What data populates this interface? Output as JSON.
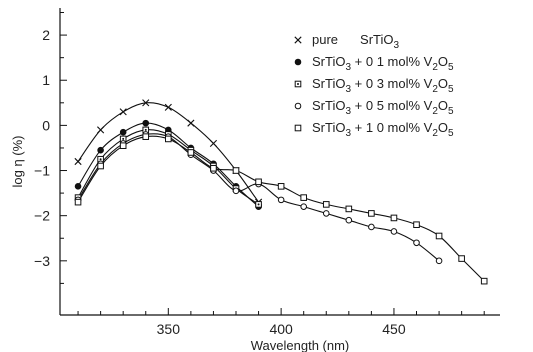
{
  "chart_data": {
    "type": "line",
    "title": "",
    "xlabel": "Wavelength (nm)",
    "ylabel": "log η (%)",
    "xlim": [
      302,
      497
    ],
    "ylim": [
      -4.2,
      2.6
    ],
    "xticks": [
      350,
      400,
      450
    ],
    "yticks": [
      2,
      1,
      0,
      -1,
      -2,
      -3
    ],
    "grid": false,
    "legend_position": "top-right",
    "series": [
      {
        "name": "pure SrTiO3",
        "marker": "x",
        "x": [
          310,
          320,
          330,
          340,
          350,
          360,
          370,
          380,
          390
        ],
        "y": [
          -0.8,
          -0.1,
          0.3,
          0.5,
          0.4,
          0.05,
          -0.4,
          -1.0,
          -1.7
        ]
      },
      {
        "name": "SrTiO3 + 0.1 mol% V2O5",
        "marker": "filled-circle",
        "x": [
          310,
          320,
          330,
          340,
          350,
          360,
          370,
          380,
          390
        ],
        "y": [
          -1.35,
          -0.55,
          -0.15,
          0.05,
          -0.1,
          -0.5,
          -0.85,
          -1.35,
          -1.8
        ]
      },
      {
        "name": "SrTiO3 + 0.3 mol% V2O5",
        "marker": "square-dot",
        "x": [
          310,
          320,
          330,
          340,
          350,
          360,
          370,
          380,
          390
        ],
        "y": [
          -1.6,
          -0.75,
          -0.3,
          -0.1,
          -0.2,
          -0.55,
          -0.9,
          -1.4,
          -1.75
        ]
      },
      {
        "name": "SrTiO3 + 0.5 mol% V2O5",
        "marker": "circle",
        "x": [
          310,
          320,
          330,
          340,
          350,
          360,
          370,
          380,
          390,
          400,
          410,
          420,
          430,
          440,
          450,
          460,
          470
        ],
        "y": [
          -1.65,
          -0.85,
          -0.4,
          -0.2,
          -0.25,
          -0.65,
          -1.0,
          -1.45,
          -1.3,
          -1.65,
          -1.8,
          -1.95,
          -2.1,
          -2.25,
          -2.35,
          -2.6,
          -3.0
        ]
      },
      {
        "name": "SrTiO3 + 1.0 mol% V2O5",
        "marker": "square",
        "x": [
          310,
          320,
          330,
          340,
          350,
          360,
          370,
          380,
          390,
          400,
          410,
          420,
          430,
          440,
          450,
          460,
          470,
          480,
          490
        ],
        "y": [
          -1.7,
          -0.9,
          -0.45,
          -0.25,
          -0.3,
          -0.6,
          -0.95,
          -1.0,
          -1.25,
          -1.35,
          -1.6,
          -1.75,
          -1.85,
          -1.95,
          -2.05,
          -2.2,
          -2.45,
          -2.95,
          -3.45
        ]
      }
    ]
  },
  "legend_rows": [
    {
      "marker": "x",
      "parts": [
        "pure",
        "SrTiO",
        "3"
      ]
    },
    {
      "marker": "filled-circle",
      "parts": [
        "SrTiO",
        "3",
        " + 0 1 mol% V",
        "2",
        "O",
        "5"
      ]
    },
    {
      "marker": "square-dot",
      "parts": [
        "SrTiO",
        "3",
        " + 0 3 mol% V",
        "2",
        "O",
        "5"
      ]
    },
    {
      "marker": "circle",
      "parts": [
        "SrTiO",
        "3",
        " + 0 5 mol% V",
        "2",
        "O",
        "5"
      ]
    },
    {
      "marker": "square",
      "parts": [
        "SrTiO",
        "3",
        " + 1 0 mol% V",
        "2",
        "O",
        "5"
      ]
    }
  ],
  "axis_titles": {
    "x": "Wavelength (nm)",
    "y": "log η (%)"
  }
}
